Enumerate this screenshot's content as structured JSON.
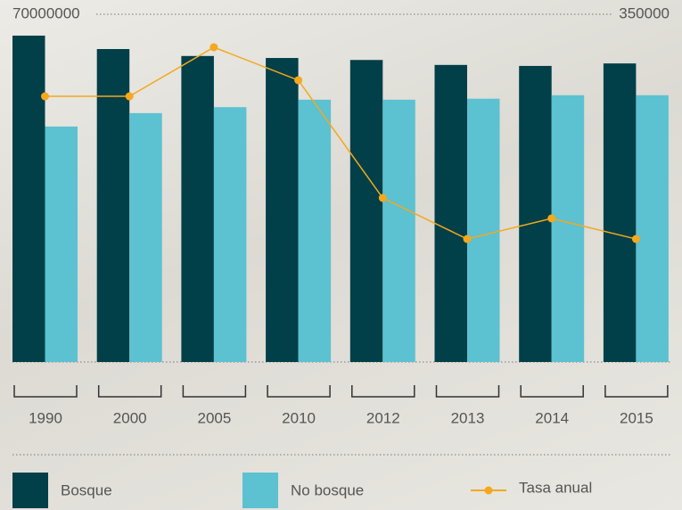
{
  "chart_data": {
    "type": "bar",
    "categories": [
      "1990",
      "2000",
      "2005",
      "2010",
      "2012",
      "2013",
      "2014",
      "2015"
    ],
    "series": [
      {
        "name": "Bosque",
        "color": "#013f49",
        "values": [
          65700000,
          63000000,
          61600000,
          61200000,
          60800000,
          59800000,
          59600000,
          60100000
        ]
      },
      {
        "name": "No bosque",
        "color": "#5cc1d1",
        "values": [
          47400000,
          50100000,
          51300000,
          52800000,
          52800000,
          53000000,
          53700000,
          53700000
        ]
      },
      {
        "name": "Tasa anual",
        "color": "#f4a81d",
        "type": "line",
        "axis": "y2",
        "values": [
          267400,
          267400,
          316800,
          283600,
          165100,
          123800,
          144500,
          123800
        ]
      }
    ],
    "ylim": [
      0,
      70000000
    ],
    "yticks": [
      70000000
    ],
    "y2lim": [
      0,
      350000
    ],
    "y2ticks": [
      350000
    ],
    "grid": true
  }
}
